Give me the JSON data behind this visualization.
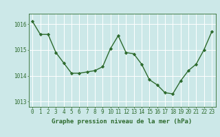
{
  "x": [
    0,
    1,
    2,
    3,
    4,
    5,
    6,
    7,
    8,
    9,
    10,
    11,
    12,
    13,
    14,
    15,
    16,
    17,
    18,
    19,
    20,
    21,
    22,
    23
  ],
  "y": [
    1016.1,
    1015.6,
    1015.6,
    1014.9,
    1014.5,
    1014.1,
    1014.1,
    1014.15,
    1014.2,
    1014.35,
    1015.05,
    1015.55,
    1014.9,
    1014.85,
    1014.45,
    1013.85,
    1013.65,
    1013.35,
    1013.3,
    1013.8,
    1014.2,
    1014.45,
    1015.0,
    1015.7
  ],
  "ylim": [
    1012.8,
    1016.4
  ],
  "yticks": [
    1013,
    1014,
    1015,
    1016
  ],
  "xticks": [
    0,
    1,
    2,
    3,
    4,
    5,
    6,
    7,
    8,
    9,
    10,
    11,
    12,
    13,
    14,
    15,
    16,
    17,
    18,
    19,
    20,
    21,
    22,
    23
  ],
  "line_color": "#2d6a2d",
  "marker": "D",
  "marker_size": 2.2,
  "line_width": 1.0,
  "bg_color": "#cce8e8",
  "grid_color": "#ffffff",
  "xlabel": "Graphe pression niveau de la mer (hPa)",
  "xlabel_fontsize": 6.5,
  "tick_fontsize": 5.5,
  "fig_bg": "#cce8e8"
}
